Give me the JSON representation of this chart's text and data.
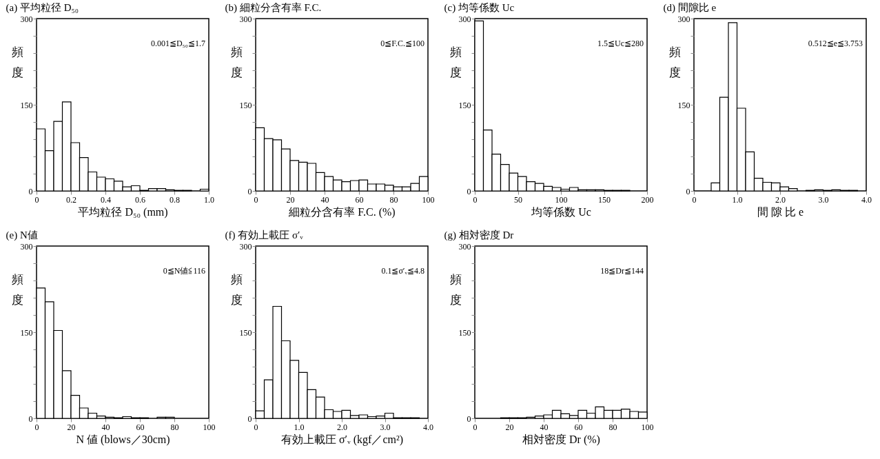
{
  "chart_data": [
    {
      "type": "histogram",
      "title": "(a) 平均粒径 D₅₀",
      "xlabel": "平均粒径 D₅₀ (mm)",
      "ylabel": "頻度",
      "annotations": [
        "0.001≦D₅₀≦1.7"
      ],
      "color": "#ffffff",
      "bins": [
        0,
        0.05,
        0.1,
        0.15,
        0.2,
        0.25,
        0.3,
        0.35,
        0.4,
        0.45,
        0.5,
        0.55,
        0.6,
        0.65,
        0.7,
        0.75,
        0.8,
        0.85,
        0.9,
        0.95,
        1.0
      ],
      "values": [
        108,
        70,
        121,
        155,
        84,
        58,
        33,
        24,
        21,
        17,
        7,
        9,
        1,
        4,
        4,
        2,
        1,
        1,
        0,
        3
      ],
      "xlim": [
        0,
        1.0
      ],
      "xticks": [
        0,
        0.2,
        0.4,
        0.6,
        0.8,
        {
          "value": 1.0,
          "label": "1.0"
        }
      ],
      "ylim": [
        0,
        300
      ],
      "yticks": [
        0,
        {
          "value": 30,
          "label": null
        },
        {
          "value": 60,
          "label": null
        },
        {
          "value": 90,
          "label": null
        },
        {
          "value": 120,
          "label": null
        },
        150,
        {
          "value": 180,
          "label": null
        },
        {
          "value": 210,
          "label": null
        },
        {
          "value": 240,
          "label": null
        },
        {
          "value": 270,
          "label": null
        },
        300
      ]
    },
    {
      "type": "histogram",
      "title": "(b) 細粒分含有率 F.C.",
      "xlabel": "細粒分含有率 F.C. (%)",
      "ylabel": "頻度",
      "annotations": [
        "0≦F.C.≦100"
      ],
      "color": "#ffffff",
      "bins": [
        0,
        5,
        10,
        15,
        20,
        25,
        30,
        35,
        40,
        45,
        50,
        55,
        60,
        65,
        70,
        75,
        80,
        85,
        90,
        95,
        100
      ],
      "values": [
        110,
        91,
        89,
        73,
        53,
        50,
        48,
        32,
        25,
        19,
        16,
        18,
        19,
        12,
        12,
        10,
        7,
        7,
        13,
        25
      ],
      "xlim": [
        0,
        100
      ],
      "xticks": [
        0,
        20,
        40,
        60,
        80,
        100
      ],
      "ylim": [
        0,
        300
      ],
      "yticks": [
        0,
        {
          "value": 30,
          "label": null
        },
        {
          "value": 60,
          "label": null
        },
        {
          "value": 90,
          "label": null
        },
        {
          "value": 120,
          "label": null
        },
        150,
        {
          "value": 180,
          "label": null
        },
        {
          "value": 210,
          "label": null
        },
        {
          "value": 240,
          "label": null
        },
        {
          "value": 270,
          "label": null
        },
        300
      ]
    },
    {
      "type": "histogram",
      "title": "(c) 均等係数 Uc",
      "xlabel": "均等係数 Uc",
      "ylabel": "頻度",
      "annotations": [
        "1.5≦Uc≦280"
      ],
      "color": "#ffffff",
      "bins": [
        0,
        10,
        20,
        30,
        40,
        50,
        60,
        70,
        80,
        90,
        100,
        110,
        120,
        130,
        140,
        150,
        160,
        170,
        180,
        190,
        200
      ],
      "values": [
        296,
        106,
        64,
        46,
        31,
        25,
        16,
        13,
        8,
        6,
        3,
        6,
        2,
        2,
        2,
        1,
        1,
        1,
        0,
        0
      ],
      "xlim": [
        0,
        200
      ],
      "xticks": [
        0,
        50,
        100,
        150,
        200
      ],
      "ylim": [
        0,
        300
      ],
      "yticks": [
        0,
        {
          "value": 30,
          "label": null
        },
        {
          "value": 60,
          "label": null
        },
        {
          "value": 90,
          "label": null
        },
        {
          "value": 120,
          "label": null
        },
        150,
        {
          "value": 180,
          "label": null
        },
        {
          "value": 210,
          "label": null
        },
        {
          "value": 240,
          "label": null
        },
        {
          "value": 270,
          "label": null
        },
        300
      ]
    },
    {
      "type": "histogram",
      "title": "(d) 間隙比 e",
      "xlabel": "間 隙 比 e",
      "ylabel": "頻度",
      "annotations": [
        "0.512≦e≦3.753"
      ],
      "color": "#ffffff",
      "bins": [
        0,
        0.2,
        0.4,
        0.6,
        0.8,
        1.0,
        1.2,
        1.4,
        1.6,
        1.8,
        2.0,
        2.2,
        2.4,
        2.6,
        2.8,
        3.0,
        3.2,
        3.4,
        3.6,
        3.8,
        4.0
      ],
      "values": [
        0,
        0,
        14,
        163,
        293,
        144,
        68,
        22,
        15,
        14,
        7,
        4,
        0,
        1,
        2,
        1,
        2,
        1,
        1,
        0
      ],
      "xlim": [
        0,
        4.0
      ],
      "xticks": [
        0,
        {
          "value": 1,
          "label": "1.0"
        },
        {
          "value": 2,
          "label": "2.0"
        },
        {
          "value": 3,
          "label": "3.0"
        },
        {
          "value": 4,
          "label": "4.0"
        }
      ],
      "ylim": [
        0,
        300
      ],
      "yticks": [
        0,
        {
          "value": 30,
          "label": null
        },
        {
          "value": 60,
          "label": null
        },
        {
          "value": 90,
          "label": null
        },
        {
          "value": 120,
          "label": null
        },
        150,
        {
          "value": 180,
          "label": null
        },
        {
          "value": 210,
          "label": null
        },
        {
          "value": 240,
          "label": null
        },
        {
          "value": 270,
          "label": null
        },
        300
      ]
    },
    {
      "type": "histogram",
      "title": "(e) N値",
      "xlabel": "N 値 (blows／30cm)",
      "ylabel": "頻度",
      "annotations": [
        "0≦N値≦116"
      ],
      "color": "#ffffff",
      "bins": [
        0,
        5,
        10,
        15,
        20,
        25,
        30,
        35,
        40,
        45,
        50,
        55,
        60,
        65,
        70,
        75,
        80,
        85,
        90,
        95,
        100
      ],
      "values": [
        227,
        203,
        153,
        83,
        40,
        18,
        9,
        4,
        2,
        1,
        3,
        1,
        1,
        0,
        2,
        2,
        0,
        0,
        0,
        0
      ],
      "xlim": [
        0,
        100
      ],
      "xticks": [
        0,
        20,
        40,
        60,
        80,
        100
      ],
      "ylim": [
        0,
        300
      ],
      "yticks": [
        0,
        {
          "value": 30,
          "label": null
        },
        {
          "value": 60,
          "label": null
        },
        {
          "value": 90,
          "label": null
        },
        {
          "value": 120,
          "label": null
        },
        150,
        {
          "value": 180,
          "label": null
        },
        {
          "value": 210,
          "label": null
        },
        {
          "value": 240,
          "label": null
        },
        {
          "value": 270,
          "label": null
        },
        300
      ]
    },
    {
      "type": "histogram",
      "title": "(f) 有効上載圧 σ′ᵥ",
      "xlabel": "有効上載圧 σ′ᵥ (kgf／cm²)",
      "ylabel": "頻度",
      "annotations": [
        "0.1≦σ′ᵥ≦4.8"
      ],
      "color": "#ffffff",
      "bins": [
        0,
        0.2,
        0.4,
        0.6,
        0.8,
        1.0,
        1.2,
        1.4,
        1.6,
        1.8,
        2.0,
        2.2,
        2.4,
        2.6,
        2.8,
        3.0,
        3.2,
        3.4,
        3.6,
        3.8,
        4.0
      ],
      "values": [
        13,
        67,
        195,
        135,
        101,
        80,
        50,
        37,
        15,
        12,
        14,
        5,
        6,
        3,
        4,
        9,
        1,
        1,
        1,
        0
      ],
      "xlim": [
        0,
        4.0
      ],
      "xticks": [
        0,
        {
          "value": 1,
          "label": "1.0"
        },
        {
          "value": 2,
          "label": "2.0"
        },
        {
          "value": 3,
          "label": "3.0"
        },
        {
          "value": 4,
          "label": "4.0"
        }
      ],
      "ylim": [
        0,
        300
      ],
      "yticks": [
        0,
        {
          "value": 30,
          "label": null
        },
        {
          "value": 60,
          "label": null
        },
        {
          "value": 90,
          "label": null
        },
        {
          "value": 120,
          "label": null
        },
        150,
        {
          "value": 180,
          "label": null
        },
        {
          "value": 210,
          "label": null
        },
        {
          "value": 240,
          "label": null
        },
        {
          "value": 270,
          "label": null
        },
        300
      ]
    },
    {
      "type": "histogram",
      "title": "(g) 相対密度 Dr",
      "xlabel": "相対密度 Dr (%)",
      "ylabel": "頻度",
      "annotations": [
        "18≦Dr≦144"
      ],
      "color": "#ffffff",
      "bins": [
        0,
        5,
        10,
        15,
        20,
        25,
        30,
        35,
        40,
        45,
        50,
        55,
        60,
        65,
        70,
        75,
        80,
        85,
        90,
        95,
        100
      ],
      "values": [
        0,
        0,
        0,
        1,
        1,
        1,
        2,
        4,
        6,
        14,
        8,
        5,
        14,
        9,
        20,
        14,
        14,
        16,
        12,
        11
      ],
      "xlim": [
        0,
        100
      ],
      "xticks": [
        0,
        20,
        40,
        60,
        80,
        100
      ],
      "ylim": [
        0,
        300
      ],
      "yticks": [
        0,
        {
          "value": 30,
          "label": null
        },
        {
          "value": 60,
          "label": null
        },
        {
          "value": 90,
          "label": null
        },
        {
          "value": 120,
          "label": null
        },
        150,
        {
          "value": 180,
          "label": null
        },
        {
          "value": 210,
          "label": null
        },
        {
          "value": 240,
          "label": null
        },
        {
          "value": 270,
          "label": null
        },
        300
      ]
    }
  ]
}
